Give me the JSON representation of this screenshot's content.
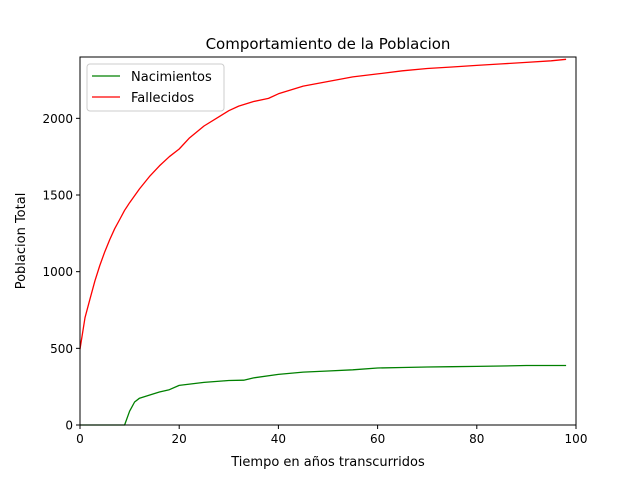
{
  "chart_data": {
    "type": "line",
    "title": "Comportamiento de la Poblacion",
    "xlabel": "Tiempo en años transcurridos",
    "ylabel": "Poblacion Total",
    "xlim": [
      0,
      100
    ],
    "ylim": [
      0,
      2400
    ],
    "xticks": [
      "0",
      "20",
      "40",
      "60",
      "80",
      "100"
    ],
    "yticks": [
      "0",
      "500",
      "1000",
      "1500",
      "2000"
    ],
    "xtick_values": [
      0,
      20,
      40,
      60,
      80,
      100
    ],
    "ytick_values": [
      0,
      500,
      1000,
      1500,
      2000
    ],
    "grid": false,
    "legend_position": "top-left",
    "series": [
      {
        "name": "Nacimientos",
        "color": "#008000",
        "x": [
          0,
          5,
          9,
          10,
          11,
          12,
          14,
          16,
          18,
          20,
          25,
          30,
          33,
          35,
          40,
          45,
          50,
          55,
          60,
          65,
          70,
          75,
          80,
          85,
          90,
          95,
          98
        ],
        "y": [
          0,
          0,
          0,
          90,
          150,
          175,
          195,
          215,
          230,
          258,
          278,
          290,
          292,
          307,
          330,
          345,
          352,
          360,
          372,
          375,
          378,
          380,
          382,
          385,
          388,
          388,
          388
        ]
      },
      {
        "name": "Fallecidos",
        "color": "#ff0000",
        "x": [
          0,
          1,
          2,
          3,
          4,
          5,
          6,
          7,
          8,
          9,
          10,
          12,
          14,
          16,
          18,
          20,
          22,
          25,
          28,
          30,
          32,
          35,
          38,
          40,
          45,
          50,
          55,
          60,
          65,
          70,
          75,
          80,
          85,
          90,
          95,
          98
        ],
        "y": [
          495,
          700,
          820,
          940,
          1040,
          1130,
          1210,
          1280,
          1340,
          1400,
          1450,
          1540,
          1620,
          1690,
          1750,
          1800,
          1870,
          1950,
          2010,
          2050,
          2080,
          2110,
          2130,
          2160,
          2210,
          2240,
          2270,
          2290,
          2310,
          2325,
          2335,
          2345,
          2355,
          2365,
          2375,
          2385
        ]
      }
    ]
  }
}
